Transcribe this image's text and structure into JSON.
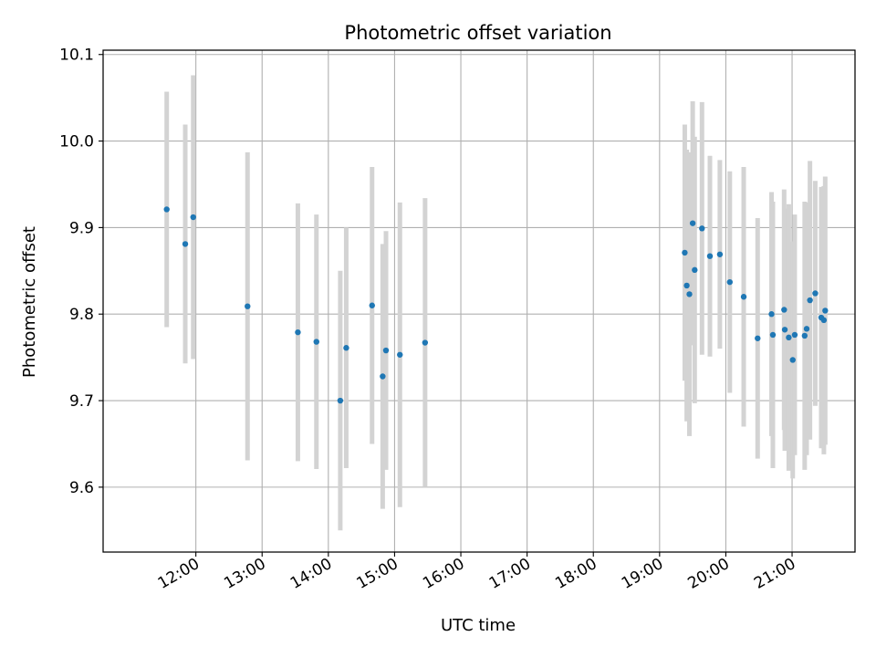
{
  "chart_data": {
    "type": "scatter",
    "title": "Photometric offset variation",
    "xlabel": "UTC time",
    "ylabel": "Photometric offset",
    "x_unit": "hours (UTC)",
    "xlim": [
      10.6,
      21.95
    ],
    "ylim": [
      9.525,
      10.105
    ],
    "grid": true,
    "x_ticks": [
      {
        "value": 12,
        "label": "12:00"
      },
      {
        "value": 13,
        "label": "13:00"
      },
      {
        "value": 14,
        "label": "14:00"
      },
      {
        "value": 15,
        "label": "15:00"
      },
      {
        "value": 16,
        "label": "16:00"
      },
      {
        "value": 17,
        "label": "17:00"
      },
      {
        "value": 18,
        "label": "18:00"
      },
      {
        "value": 19,
        "label": "19:00"
      },
      {
        "value": 20,
        "label": "20:00"
      },
      {
        "value": 21,
        "label": "21:00"
      }
    ],
    "y_ticks": [
      {
        "value": 9.6,
        "label": "9.6"
      },
      {
        "value": 9.7,
        "label": "9.7"
      },
      {
        "value": 9.8,
        "label": "9.8"
      },
      {
        "value": 9.9,
        "label": "9.9"
      },
      {
        "value": 10.0,
        "label": "10.0"
      },
      {
        "value": 10.1,
        "label": "10.1"
      }
    ],
    "colors": {
      "point": "#1f77b4",
      "errorbar": "#d3d3d3",
      "grid": "#b0b0b0",
      "axes": "#000000"
    },
    "points": [
      {
        "x": 11.56,
        "y": 9.921,
        "err": 0.136
      },
      {
        "x": 11.84,
        "y": 9.881,
        "err": 0.138
      },
      {
        "x": 11.96,
        "y": 9.912,
        "err": 0.164
      },
      {
        "x": 12.78,
        "y": 9.809,
        "err": 0.178
      },
      {
        "x": 13.54,
        "y": 9.779,
        "err": 0.149
      },
      {
        "x": 13.82,
        "y": 9.768,
        "err": 0.147
      },
      {
        "x": 14.18,
        "y": 9.7,
        "err": 0.15
      },
      {
        "x": 14.27,
        "y": 9.761,
        "err": 0.139
      },
      {
        "x": 14.66,
        "y": 9.81,
        "err": 0.16
      },
      {
        "x": 14.82,
        "y": 9.728,
        "err": 0.153
      },
      {
        "x": 14.87,
        "y": 9.758,
        "err": 0.138
      },
      {
        "x": 15.08,
        "y": 9.753,
        "err": 0.176
      },
      {
        "x": 15.46,
        "y": 9.767,
        "err": 0.167
      },
      {
        "x": 19.38,
        "y": 9.871,
        "err": 0.148
      },
      {
        "x": 19.41,
        "y": 9.833,
        "err": 0.157
      },
      {
        "x": 19.45,
        "y": 9.823,
        "err": 0.164
      },
      {
        "x": 19.5,
        "y": 9.905,
        "err": 0.141
      },
      {
        "x": 19.53,
        "y": 9.851,
        "err": 0.154
      },
      {
        "x": 19.64,
        "y": 9.899,
        "err": 0.146
      },
      {
        "x": 19.76,
        "y": 9.867,
        "err": 0.116
      },
      {
        "x": 19.91,
        "y": 9.869,
        "err": 0.109
      },
      {
        "x": 20.06,
        "y": 9.837,
        "err": 0.128
      },
      {
        "x": 20.27,
        "y": 9.82,
        "err": 0.15
      },
      {
        "x": 20.48,
        "y": 9.772,
        "err": 0.139
      },
      {
        "x": 20.69,
        "y": 9.8,
        "err": 0.141
      },
      {
        "x": 20.71,
        "y": 9.776,
        "err": 0.154
      },
      {
        "x": 20.88,
        "y": 9.805,
        "err": 0.139
      },
      {
        "x": 20.89,
        "y": 9.782,
        "err": 0.14
      },
      {
        "x": 20.95,
        "y": 9.773,
        "err": 0.154
      },
      {
        "x": 21.01,
        "y": 9.747,
        "err": 0.137
      },
      {
        "x": 21.04,
        "y": 9.776,
        "err": 0.139
      },
      {
        "x": 21.19,
        "y": 9.775,
        "err": 0.155
      },
      {
        "x": 21.22,
        "y": 9.783,
        "err": 0.146
      },
      {
        "x": 21.27,
        "y": 9.816,
        "err": 0.161
      },
      {
        "x": 21.35,
        "y": 9.824,
        "err": 0.13
      },
      {
        "x": 21.44,
        "y": 9.796,
        "err": 0.151
      },
      {
        "x": 21.48,
        "y": 9.793,
        "err": 0.155
      },
      {
        "x": 21.5,
        "y": 9.804,
        "err": 0.155
      }
    ]
  }
}
